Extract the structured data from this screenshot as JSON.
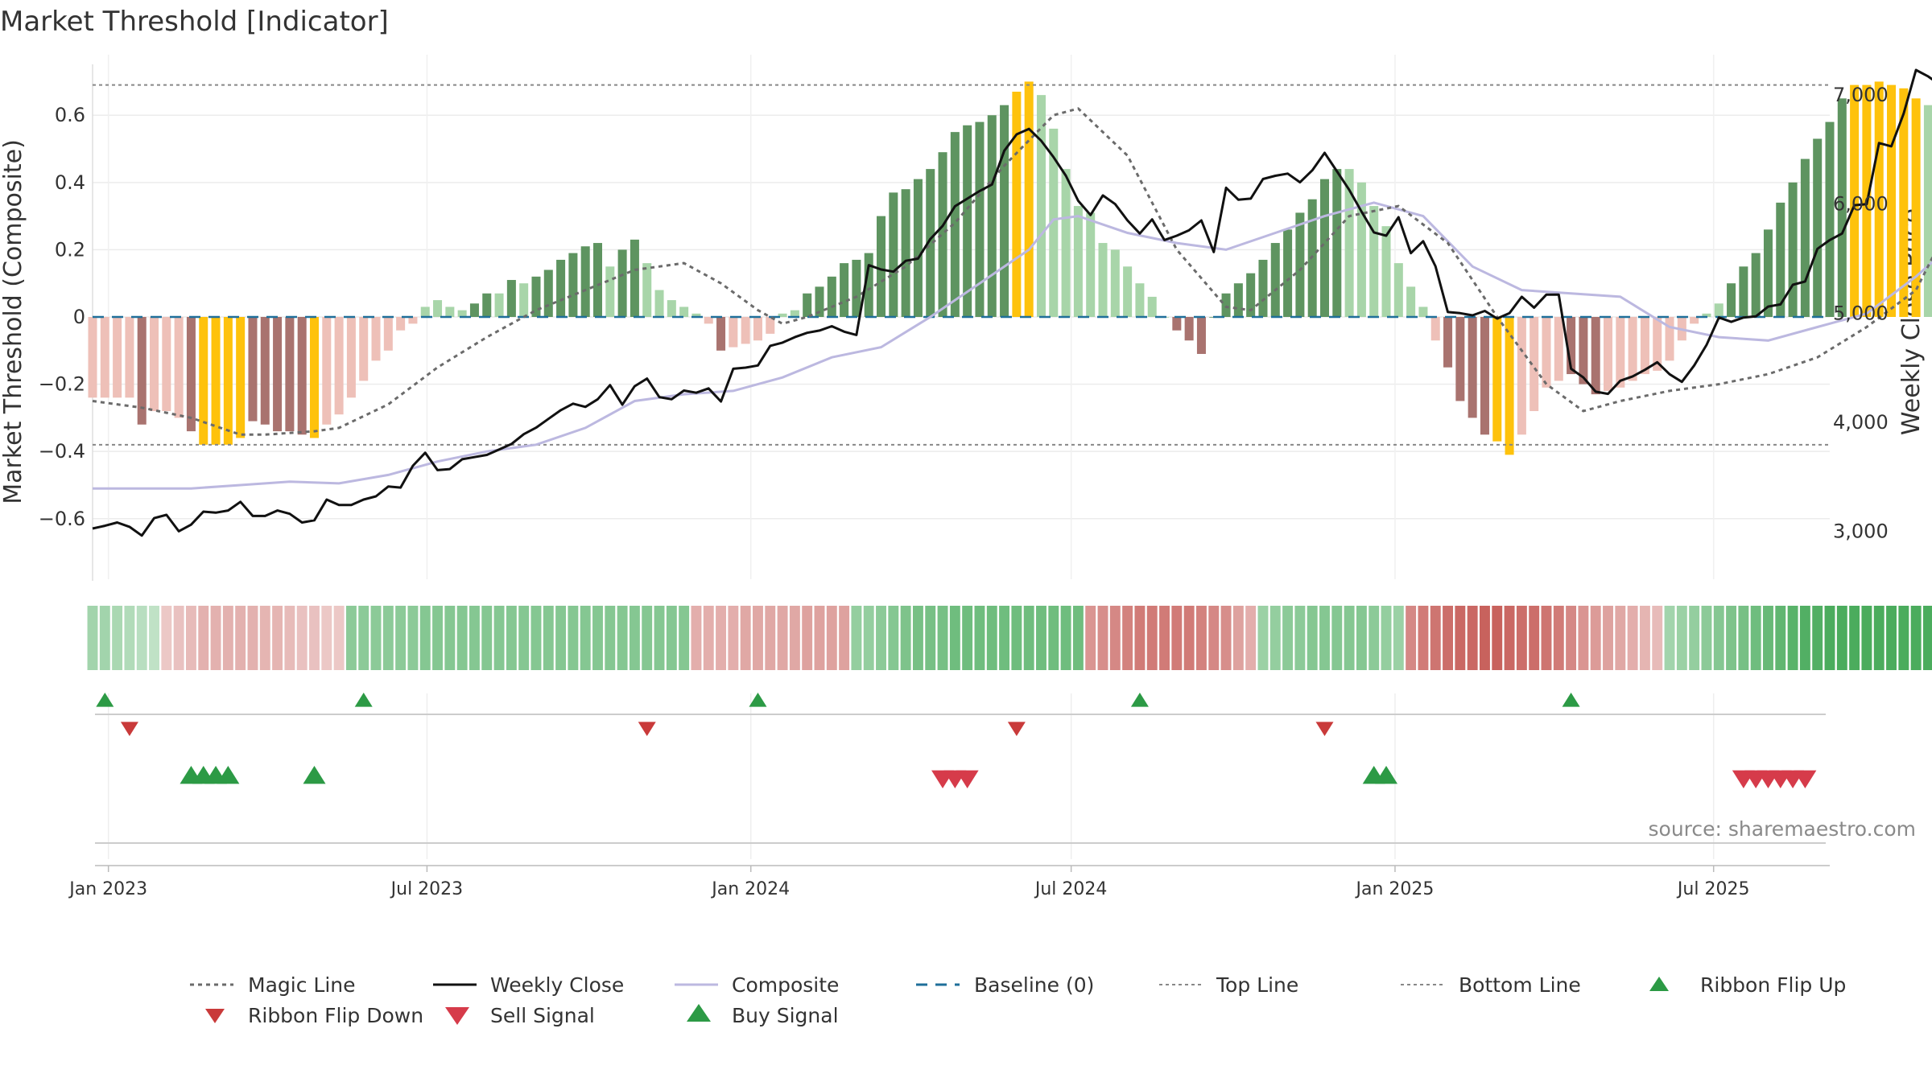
{
  "chart_data": {
    "type": "bar",
    "title": "Market Threshold [Indicator]",
    "ylabel_left": "Market Threshold (Composite)",
    "ylabel_right": "Weekly Close Price",
    "source": "source: sharemaestro.com",
    "y_left_range": [
      -0.78,
      0.78
    ],
    "y_left_ticks": [
      0.6,
      0.4,
      0.2,
      0,
      -0.2,
      -0.4,
      -0.6
    ],
    "y_left_tick_labels": [
      "0.6",
      "0.4",
      "0.2",
      "0",
      "−0.2",
      "−0.4",
      "−0.6"
    ],
    "y_right_range": [
      2560,
      7370
    ],
    "y_right_ticks": [
      7000,
      6000,
      5000,
      4000,
      3000
    ],
    "y_right_tick_labels": [
      "7,000",
      "6,000",
      "5,000",
      "4,000",
      "3,000"
    ],
    "x_range": [
      "2022-12-23",
      "2025-09-05"
    ],
    "x_ticks": [
      "2023-01-01",
      "2023-07-01",
      "2024-01-01",
      "2024-07-01",
      "2025-01-01",
      "2025-07-01"
    ],
    "x_tick_labels": [
      "Jan 2023",
      "Jul 2023",
      "Jan 2024",
      "Jul 2024",
      "Jan 2025",
      "Jul 2025"
    ],
    "top_line": 0.69,
    "bottom_line": -0.38,
    "baseline": 0,
    "colors": {
      "strong_up": "#5e9460",
      "weak_up": "#a8d5a9",
      "strong_down": "#a9736f",
      "weak_down": "#eec0b8",
      "extreme": "#fec20c",
      "magic_line": "#6b6b6b",
      "weekly_close": "#111111",
      "composite": "#bcb8e0",
      "baseline": "#1f6f9a",
      "threshold": "#888888",
      "buy": "#2c9a45",
      "sell": "#d63b4a"
    },
    "bar_start": "2022-12-23",
    "bar_interval_days": 7,
    "bars": [
      [
        -0.24,
        "w"
      ],
      [
        -0.24,
        "w"
      ],
      [
        -0.24,
        "w"
      ],
      [
        -0.24,
        "w"
      ],
      [
        -0.32,
        "d"
      ],
      [
        -0.28,
        "w"
      ],
      [
        -0.28,
        "w"
      ],
      [
        -0.3,
        "w"
      ],
      [
        -0.34,
        "d"
      ],
      [
        -0.38,
        "x"
      ],
      [
        -0.38,
        "x"
      ],
      [
        -0.38,
        "x"
      ],
      [
        -0.36,
        "x"
      ],
      [
        -0.31,
        "d"
      ],
      [
        -0.32,
        "d"
      ],
      [
        -0.34,
        "d"
      ],
      [
        -0.34,
        "d"
      ],
      [
        -0.35,
        "d"
      ],
      [
        -0.36,
        "x"
      ],
      [
        -0.32,
        "w"
      ],
      [
        -0.29,
        "w"
      ],
      [
        -0.24,
        "w"
      ],
      [
        -0.19,
        "w"
      ],
      [
        -0.13,
        "w"
      ],
      [
        -0.1,
        "w"
      ],
      [
        -0.04,
        "w"
      ],
      [
        -0.02,
        "w"
      ],
      [
        0.03,
        "w"
      ],
      [
        0.05,
        "w"
      ],
      [
        0.03,
        "w"
      ],
      [
        0.02,
        "w"
      ],
      [
        0.04,
        "u"
      ],
      [
        0.07,
        "u"
      ],
      [
        0.07,
        "w"
      ],
      [
        0.11,
        "u"
      ],
      [
        0.1,
        "w"
      ],
      [
        0.12,
        "u"
      ],
      [
        0.14,
        "u"
      ],
      [
        0.17,
        "u"
      ],
      [
        0.19,
        "u"
      ],
      [
        0.21,
        "u"
      ],
      [
        0.22,
        "u"
      ],
      [
        0.15,
        "w"
      ],
      [
        0.2,
        "u"
      ],
      [
        0.23,
        "u"
      ],
      [
        0.16,
        "w"
      ],
      [
        0.08,
        "w"
      ],
      [
        0.05,
        "w"
      ],
      [
        0.03,
        "w"
      ],
      [
        0.01,
        "w"
      ],
      [
        -0.02,
        "w"
      ],
      [
        -0.1,
        "d"
      ],
      [
        -0.09,
        "w"
      ],
      [
        -0.08,
        "w"
      ],
      [
        -0.07,
        "w"
      ],
      [
        -0.05,
        "w"
      ],
      [
        0.01,
        "w"
      ],
      [
        0.02,
        "w"
      ],
      [
        0.07,
        "u"
      ],
      [
        0.09,
        "u"
      ],
      [
        0.12,
        "u"
      ],
      [
        0.16,
        "u"
      ],
      [
        0.17,
        "u"
      ],
      [
        0.19,
        "u"
      ],
      [
        0.3,
        "u"
      ],
      [
        0.37,
        "u"
      ],
      [
        0.38,
        "u"
      ],
      [
        0.41,
        "u"
      ],
      [
        0.44,
        "u"
      ],
      [
        0.49,
        "u"
      ],
      [
        0.55,
        "u"
      ],
      [
        0.57,
        "u"
      ],
      [
        0.58,
        "u"
      ],
      [
        0.6,
        "u"
      ],
      [
        0.63,
        "u"
      ],
      [
        0.67,
        "x"
      ],
      [
        0.7,
        "x"
      ],
      [
        0.66,
        "w"
      ],
      [
        0.56,
        "w"
      ],
      [
        0.44,
        "w"
      ],
      [
        0.33,
        "w"
      ],
      [
        0.31,
        "w"
      ],
      [
        0.22,
        "w"
      ],
      [
        0.2,
        "w"
      ],
      [
        0.15,
        "w"
      ],
      [
        0.1,
        "w"
      ],
      [
        0.06,
        "w"
      ],
      [
        0.0,
        "w"
      ],
      [
        -0.04,
        "d"
      ],
      [
        -0.07,
        "d"
      ],
      [
        -0.11,
        "d"
      ],
      [
        0.0,
        "u"
      ],
      [
        0.07,
        "u"
      ],
      [
        0.1,
        "u"
      ],
      [
        0.13,
        "u"
      ],
      [
        0.17,
        "u"
      ],
      [
        0.22,
        "u"
      ],
      [
        0.26,
        "u"
      ],
      [
        0.31,
        "u"
      ],
      [
        0.35,
        "u"
      ],
      [
        0.41,
        "u"
      ],
      [
        0.44,
        "u"
      ],
      [
        0.44,
        "w"
      ],
      [
        0.4,
        "w"
      ],
      [
        0.33,
        "w"
      ],
      [
        0.27,
        "w"
      ],
      [
        0.16,
        "w"
      ],
      [
        0.09,
        "w"
      ],
      [
        0.03,
        "w"
      ],
      [
        -0.07,
        "w"
      ],
      [
        -0.15,
        "d"
      ],
      [
        -0.25,
        "d"
      ],
      [
        -0.3,
        "d"
      ],
      [
        -0.35,
        "d"
      ],
      [
        -0.37,
        "x"
      ],
      [
        -0.41,
        "x"
      ],
      [
        -0.35,
        "w"
      ],
      [
        -0.28,
        "w"
      ],
      [
        -0.21,
        "w"
      ],
      [
        -0.19,
        "w"
      ],
      [
        -0.17,
        "d"
      ],
      [
        -0.2,
        "d"
      ],
      [
        -0.23,
        "d"
      ],
      [
        -0.22,
        "w"
      ],
      [
        -0.21,
        "w"
      ],
      [
        -0.19,
        "w"
      ],
      [
        -0.17,
        "w"
      ],
      [
        -0.16,
        "w"
      ],
      [
        -0.13,
        "w"
      ],
      [
        -0.07,
        "w"
      ],
      [
        -0.02,
        "w"
      ],
      [
        0.01,
        "w"
      ],
      [
        0.04,
        "w"
      ],
      [
        0.1,
        "u"
      ],
      [
        0.15,
        "u"
      ],
      [
        0.19,
        "u"
      ],
      [
        0.26,
        "u"
      ],
      [
        0.34,
        "u"
      ],
      [
        0.4,
        "u"
      ],
      [
        0.47,
        "u"
      ],
      [
        0.53,
        "u"
      ],
      [
        0.58,
        "u"
      ],
      [
        0.65,
        "u"
      ],
      [
        0.69,
        "x"
      ],
      [
        0.69,
        "x"
      ],
      [
        0.7,
        "x"
      ],
      [
        0.69,
        "x"
      ],
      [
        0.68,
        "x"
      ],
      [
        0.65,
        "x"
      ],
      [
        0.63,
        "w"
      ],
      [
        0.6,
        "w"
      ]
    ],
    "weekly_close_start": "2022-12-23",
    "weekly_close": [
      3025,
      3050,
      3080,
      3040,
      2960,
      3120,
      3150,
      3000,
      3060,
      3180,
      3170,
      3190,
      3270,
      3140,
      3140,
      3190,
      3160,
      3080,
      3100,
      3290,
      3240,
      3240,
      3290,
      3320,
      3410,
      3400,
      3600,
      3720,
      3560,
      3570,
      3660,
      3680,
      3700,
      3750,
      3800,
      3890,
      3950,
      4030,
      4110,
      4170,
      4140,
      4210,
      4340,
      4160,
      4330,
      4400,
      4230,
      4210,
      4290,
      4270,
      4310,
      4190,
      4490,
      4500,
      4520,
      4700,
      4730,
      4780,
      4820,
      4840,
      4880,
      4830,
      4800,
      5440,
      5400,
      5380,
      5480,
      5500,
      5680,
      5800,
      5980,
      6050,
      6120,
      6180,
      6490,
      6640,
      6690,
      6580,
      6430,
      6260,
      6030,
      5900,
      6080,
      6000,
      5850,
      5730,
      5860,
      5670,
      5710,
      5760,
      5850,
      5560,
      6150,
      6040,
      6050,
      6230,
      6260,
      6280,
      6200,
      6310,
      6470,
      6300,
      6130,
      5930,
      5740,
      5710,
      5880,
      5550,
      5660,
      5430,
      5010,
      5000,
      4980,
      5020,
      4950,
      5000,
      5150,
      5050,
      5170,
      5170,
      4490,
      4410,
      4280,
      4260,
      4380,
      4420,
      4480,
      4550,
      4440,
      4370,
      4520,
      4710,
      4960,
      4920,
      4960,
      4970,
      5060,
      5080,
      5260,
      5290,
      5590,
      5670,
      5730,
      5990,
      6000,
      6560,
      6530,
      6830,
      7230,
      7170,
      7090,
      7190,
      7190
    ],
    "magic_line": [
      [
        0,
        -0.25
      ],
      [
        4,
        -0.27
      ],
      [
        8,
        -0.3
      ],
      [
        12,
        -0.35
      ],
      [
        14,
        -0.35
      ],
      [
        18,
        -0.34
      ],
      [
        20,
        -0.33
      ],
      [
        24,
        -0.26
      ],
      [
        28,
        -0.15
      ],
      [
        32,
        -0.06
      ],
      [
        36,
        0.02
      ],
      [
        40,
        0.08
      ],
      [
        44,
        0.14
      ],
      [
        48,
        0.16
      ],
      [
        51,
        0.1
      ],
      [
        54,
        0.02
      ],
      [
        56,
        -0.02
      ],
      [
        58,
        0.0
      ],
      [
        62,
        0.06
      ],
      [
        66,
        0.15
      ],
      [
        70,
        0.28
      ],
      [
        74,
        0.45
      ],
      [
        78,
        0.6
      ],
      [
        80,
        0.62
      ],
      [
        84,
        0.48
      ],
      [
        88,
        0.2
      ],
      [
        92,
        0.03
      ],
      [
        94,
        0.02
      ],
      [
        98,
        0.14
      ],
      [
        102,
        0.3
      ],
      [
        106,
        0.33
      ],
      [
        110,
        0.22
      ],
      [
        114,
        0.0
      ],
      [
        118,
        -0.2
      ],
      [
        121,
        -0.28
      ],
      [
        124,
        -0.25
      ],
      [
        128,
        -0.22
      ],
      [
        132,
        -0.2
      ],
      [
        136,
        -0.17
      ],
      [
        140,
        -0.12
      ],
      [
        144,
        -0.03
      ],
      [
        148,
        0.08
      ],
      [
        152,
        0.37
      ],
      [
        156,
        0.6
      ],
      [
        159,
        0.63
      ]
    ],
    "composite": [
      [
        0,
        -0.51
      ],
      [
        4,
        -0.51
      ],
      [
        8,
        -0.51
      ],
      [
        12,
        -0.5
      ],
      [
        16,
        -0.49
      ],
      [
        20,
        -0.495
      ],
      [
        24,
        -0.47
      ],
      [
        28,
        -0.43
      ],
      [
        32,
        -0.4
      ],
      [
        36,
        -0.38
      ],
      [
        40,
        -0.33
      ],
      [
        44,
        -0.25
      ],
      [
        48,
        -0.23
      ],
      [
        52,
        -0.22
      ],
      [
        56,
        -0.18
      ],
      [
        60,
        -0.12
      ],
      [
        64,
        -0.09
      ],
      [
        68,
        0.0
      ],
      [
        72,
        0.1
      ],
      [
        76,
        0.2
      ],
      [
        78,
        0.29
      ],
      [
        80,
        0.3
      ],
      [
        84,
        0.25
      ],
      [
        88,
        0.22
      ],
      [
        92,
        0.2
      ],
      [
        96,
        0.25
      ],
      [
        100,
        0.3
      ],
      [
        104,
        0.34
      ],
      [
        108,
        0.3
      ],
      [
        112,
        0.15
      ],
      [
        116,
        0.08
      ],
      [
        120,
        0.07
      ],
      [
        124,
        0.06
      ],
      [
        128,
        -0.03
      ],
      [
        132,
        -0.06
      ],
      [
        136,
        -0.07
      ],
      [
        140,
        -0.03
      ],
      [
        144,
        0.01
      ],
      [
        148,
        0.12
      ],
      [
        152,
        0.25
      ],
      [
        156,
        0.38
      ],
      [
        159,
        0.45
      ]
    ],
    "ribbon_start": "2022-12-23",
    "ribbon": [
      0.3,
      0.3,
      0.25,
      0.2,
      0.15,
      0.1,
      -0.1,
      -0.15,
      -0.2,
      -0.28,
      -0.28,
      -0.28,
      -0.28,
      -0.28,
      -0.25,
      -0.25,
      -0.2,
      -0.15,
      -0.15,
      -0.1,
      -0.1,
      0.45,
      0.45,
      0.45,
      0.45,
      0.45,
      0.45,
      0.5,
      0.5,
      0.5,
      0.5,
      0.5,
      0.5,
      0.5,
      0.5,
      0.5,
      0.5,
      0.5,
      0.5,
      0.5,
      0.5,
      0.5,
      0.5,
      0.5,
      0.5,
      0.5,
      0.5,
      0.5,
      0.5,
      -0.3,
      -0.3,
      -0.3,
      -0.3,
      -0.35,
      -0.35,
      -0.35,
      -0.35,
      -0.35,
      -0.4,
      -0.4,
      -0.4,
      -0.4,
      0.4,
      0.4,
      0.45,
      0.5,
      0.55,
      0.6,
      0.6,
      0.6,
      0.65,
      0.65,
      0.65,
      0.65,
      0.65,
      0.65,
      0.65,
      0.65,
      0.65,
      0.65,
      0.65,
      -0.5,
      -0.55,
      -0.6,
      -0.65,
      -0.7,
      -0.7,
      -0.7,
      -0.7,
      -0.7,
      -0.65,
      -0.6,
      -0.55,
      -0.4,
      -0.3,
      0.35,
      0.4,
      0.45,
      0.45,
      0.5,
      0.5,
      0.5,
      0.5,
      0.5,
      0.45,
      0.4,
      0.35,
      -0.6,
      -0.7,
      -0.75,
      -0.8,
      -0.85,
      -0.85,
      -0.9,
      -0.9,
      -0.85,
      -0.8,
      -0.8,
      -0.75,
      -0.7,
      -0.6,
      -0.5,
      -0.45,
      -0.4,
      -0.35,
      -0.3,
      -0.25,
      -0.2,
      0.3,
      0.35,
      0.4,
      0.45,
      0.5,
      0.55,
      0.6,
      0.65,
      0.7,
      0.75,
      0.8,
      0.85,
      0.85,
      0.9,
      0.9,
      0.9,
      0.9,
      0.9,
      0.9,
      0.9,
      0.9,
      0.9,
      0.85,
      0.8
    ],
    "ribbon_flip_up": [
      "2022-12-30",
      "2023-05-26",
      "2024-01-05",
      "2024-08-09",
      "2025-04-11"
    ],
    "ribbon_flip_down": [
      "2023-01-13",
      "2023-11-03",
      "2024-05-31",
      "2024-11-22"
    ],
    "buy_signals": [
      "2023-02-17",
      "2023-02-24",
      "2023-03-03",
      "2023-03-10",
      "2023-04-28",
      "2024-12-20",
      "2024-12-27"
    ],
    "sell_signals": [
      "2024-04-19",
      "2024-04-26",
      "2024-05-03",
      "2025-07-18",
      "2025-07-25",
      "2025-08-01",
      "2025-08-08",
      "2025-08-15",
      "2025-08-22"
    ],
    "legend": [
      "Magic Line",
      "Weekly Close",
      "Composite",
      "Baseline (0)",
      "Top Line",
      "Bottom Line",
      "Ribbon Flip Up",
      "Ribbon Flip Down",
      "Sell Signal",
      "Buy Signal"
    ]
  }
}
